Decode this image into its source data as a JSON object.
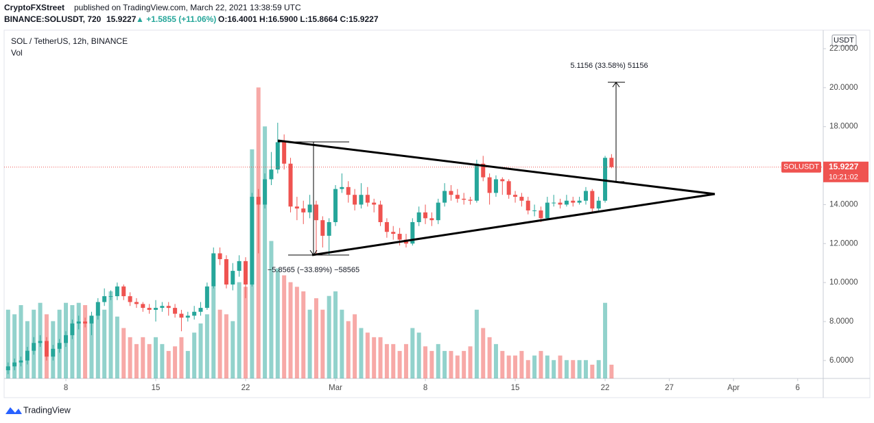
{
  "header": {
    "author": "CryptoFXStreet",
    "published": "published on TradingView.com, March 22, 2021 13:38:59 UTC",
    "symbol": "BINANCE:SOLUSDT, 720",
    "change": "▲ +1.5855 (+11.06%)",
    "ohlc": "O:16.4001 H:16.5900 L:15.8664 C:15.9227"
  },
  "footer": "TradingView",
  "chart_data": {
    "type": "candlestick",
    "title": "SOL / TetherUS, 12h, BINANCE",
    "volume_label": "Vol",
    "currency": "USDT",
    "last_label": "SOLUSDT",
    "last_price": 15.9227,
    "countdown": "10:21:02",
    "annotations": [
      "5.1156 (33.58%) 51156",
      "−5.8565 (−33.89%) −58565"
    ],
    "up_color": "#26a69a",
    "down_color": "#ef5350",
    "x": [
      3.5,
      4,
      4.5,
      5,
      5.5,
      6,
      6.5,
      7,
      7.5,
      8,
      8.5,
      9,
      9.5,
      10,
      10.5,
      11,
      11.5,
      12,
      12.5,
      13,
      13.5,
      14,
      14.5,
      15,
      15.5,
      16,
      16.5,
      17,
      17.5,
      18,
      18.5,
      19,
      19.5,
      20,
      20.5,
      21,
      21.5,
      22,
      22.5,
      23,
      23.5,
      24,
      24.5,
      25,
      25.5,
      26,
      26.5,
      27,
      27.5,
      28,
      28.5,
      29,
      29.5,
      30,
      30.5,
      31,
      31.5,
      32,
      32.5,
      33,
      33.5,
      34,
      34.5,
      35,
      35.5,
      36,
      36.5,
      37,
      37.5,
      38,
      38.5,
      39,
      39.5,
      40,
      40.5,
      41,
      41.5,
      42,
      42.5,
      43,
      43.5,
      44,
      44.5,
      45,
      45.5,
      46,
      46.5,
      47,
      47.5,
      48,
      48.5,
      49,
      49.5,
      50,
      50.5
    ],
    "open": [
      5.5,
      5.7,
      5.9,
      6.0,
      6.5,
      6.9,
      7.0,
      6.2,
      6.6,
      6.9,
      7.3,
      7.9,
      8.0,
      7.9,
      8.3,
      9.0,
      9.3,
      9.3,
      9.8,
      9.3,
      9.0,
      8.9,
      8.7,
      8.6,
      8.7,
      8.8,
      8.7,
      8.4,
      8.2,
      8.3,
      8.5,
      8.7,
      9.8,
      11.5,
      11.2,
      9.9,
      10.6,
      11.1,
      9.9,
      14.4,
      14.0,
      15.3,
      15.8,
      17.2,
      16.1,
      13.9,
      13.8,
      13.6,
      14.0,
      13.2,
      12.4,
      13.1,
      14.8,
      14.9,
      14.5,
      14.0,
      14.5,
      14.1,
      14.0,
      13.1,
      12.6,
      12.5,
      12.2,
      12.0,
      13.1,
      13.6,
      13.3,
      13.2,
      14.1,
      14.7,
      14.5,
      14.3,
      14.25,
      14.2,
      16.1,
      15.4,
      14.6,
      15.3,
      15.2,
      14.5,
      14.4,
      14.2,
      13.7,
      13.7,
      13.3,
      14.1,
      14.1,
      14.0,
      14.2,
      14.1,
      14.2,
      14.7,
      13.8,
      14.2,
      16.4001
    ],
    "high": [
      5.9,
      6.1,
      6.2,
      6.7,
      7.2,
      7.3,
      7.2,
      6.8,
      7.1,
      7.5,
      8.1,
      8.3,
      8.2,
      8.5,
      9.2,
      9.7,
      9.6,
      10.0,
      9.9,
      9.5,
      9.2,
      9.0,
      8.9,
      9.1,
      9.0,
      9.0,
      8.9,
      8.6,
      8.5,
      8.8,
      9.0,
      10.0,
      11.8,
      11.8,
      11.4,
      11.0,
      11.4,
      11.3,
      14.6,
      14.8,
      15.6,
      16.7,
      18.2,
      17.6,
      16.4,
      14.4,
      14.2,
      14.5,
      14.2,
      13.4,
      13.3,
      15.0,
      15.6,
      15.2,
      14.8,
      15.1,
      14.9,
      14.3,
      14.2,
      13.3,
      12.9,
      12.8,
      12.5,
      13.3,
      13.9,
      14.0,
      13.6,
      14.3,
      15.1,
      15.0,
      14.8,
      14.6,
      14.4,
      16.3,
      16.5,
      15.6,
      15.5,
      15.4,
      15.3,
      14.7,
      14.6,
      14.4,
      14.0,
      13.9,
      14.4,
      14.5,
      14.3,
      14.5,
      14.4,
      14.4,
      14.9,
      14.8,
      14.4,
      16.5,
      16.59
    ],
    "low": [
      5.3,
      5.5,
      5.7,
      5.8,
      6.3,
      6.7,
      6.0,
      6.0,
      6.4,
      6.7,
      7.1,
      7.6,
      7.7,
      7.3,
      8.1,
      8.8,
      9.1,
      9.1,
      9.1,
      8.8,
      8.7,
      8.5,
      8.4,
      8.0,
      8.5,
      8.3,
      8.2,
      7.5,
      8.0,
      8.1,
      8.3,
      8.6,
      9.7,
      10.9,
      9.7,
      9.6,
      10.3,
      9.2,
      9.8,
      11.5,
      13.8,
      15.0,
      15.6,
      15.8,
      13.6,
      13.2,
      13.0,
      13.3,
      11.5,
      11.8,
      11.4,
      12.9,
      14.6,
      14.1,
      13.7,
      13.8,
      13.9,
      13.6,
      12.9,
      12.3,
      12.2,
      11.9,
      11.8,
      11.9,
      12.9,
      13.0,
      12.9,
      13.0,
      13.9,
      14.2,
      14.1,
      14.0,
      14.0,
      14.1,
      15.2,
      14.0,
      14.4,
      14.5,
      14.3,
      14.1,
      13.9,
      13.5,
      13.4,
      13.1,
      13.2,
      13.9,
      13.8,
      13.9,
      13.9,
      14.0,
      14.0,
      13.6,
      13.7,
      14.1,
      15.8664
    ],
    "close": [
      5.7,
      5.9,
      6.0,
      6.5,
      6.9,
      7.0,
      6.2,
      6.6,
      6.9,
      7.3,
      7.9,
      8.0,
      7.9,
      8.3,
      9.0,
      9.3,
      9.3,
      9.8,
      9.3,
      9.0,
      8.9,
      8.7,
      8.6,
      8.7,
      8.8,
      8.7,
      8.4,
      8.2,
      8.3,
      8.5,
      8.7,
      9.8,
      11.5,
      11.2,
      9.9,
      10.6,
      11.1,
      9.9,
      14.4,
      14.0,
      15.3,
      15.8,
      17.2,
      16.1,
      13.9,
      13.8,
      13.6,
      14.0,
      13.2,
      12.4,
      13.1,
      14.8,
      14.9,
      14.5,
      14.0,
      14.5,
      14.1,
      14.0,
      13.1,
      12.6,
      12.5,
      12.2,
      12.0,
      13.1,
      13.6,
      13.3,
      13.2,
      14.1,
      14.7,
      14.5,
      14.3,
      14.25,
      14.2,
      16.1,
      15.4,
      14.6,
      15.3,
      15.2,
      14.5,
      14.4,
      14.2,
      13.7,
      13.7,
      13.3,
      14.1,
      14.1,
      14.0,
      14.2,
      14.1,
      14.2,
      14.7,
      13.8,
      14.2,
      16.4001,
      15.9227
    ],
    "volume": [
      30,
      28,
      32,
      25,
      30,
      33,
      28,
      25,
      30,
      33,
      32,
      33,
      32,
      26,
      28,
      30,
      38,
      27,
      22,
      18,
      15,
      18,
      15,
      18,
      15,
      12,
      14,
      18,
      12,
      20,
      24,
      28,
      40,
      30,
      28,
      25,
      42,
      40,
      100,
      127,
      110,
      60,
      48,
      45,
      42,
      40,
      38,
      30,
      35,
      30,
      36,
      38,
      30,
      25,
      28,
      22,
      20,
      18,
      18,
      15,
      15,
      12,
      15,
      22,
      20,
      14,
      12,
      15,
      12,
      12,
      10,
      12,
      14,
      30,
      22,
      18,
      15,
      12,
      10,
      10,
      12,
      8,
      10,
      12,
      10,
      8,
      10,
      8,
      8,
      8,
      8,
      6,
      8,
      33,
      6
    ],
    "volume_ylim": [
      0,
      152
    ],
    "xlim": [
      3.19,
      66.99
    ],
    "xticks": [
      8,
      15,
      22,
      {
        "value": 29,
        "label": "Mar"
      },
      {
        "value": 36,
        "label": "8"
      },
      {
        "value": 43,
        "label": "15"
      },
      {
        "value": 50,
        "label": "22"
      },
      {
        "value": 55,
        "label": "27"
      },
      {
        "value": 60,
        "label": "Apr"
      },
      {
        "value": 65,
        "label": "6"
      }
    ],
    "ylim": [
      5.08,
      22.95
    ],
    "yticks": [
      {
        "value": 6,
        "label": "6.0000"
      },
      {
        "value": 8,
        "label": "8.0000"
      },
      {
        "value": 10,
        "label": "10.0000"
      },
      {
        "value": 12,
        "label": "12.0000"
      },
      {
        "value": 14,
        "label": "14.0000"
      },
      {
        "value": 16,
        "label": "16.0000"
      },
      {
        "value": 18,
        "label": "18.0000"
      },
      {
        "value": 20,
        "label": "20.0000"
      },
      {
        "value": 22,
        "label": "22.0000"
      }
    ]
  }
}
